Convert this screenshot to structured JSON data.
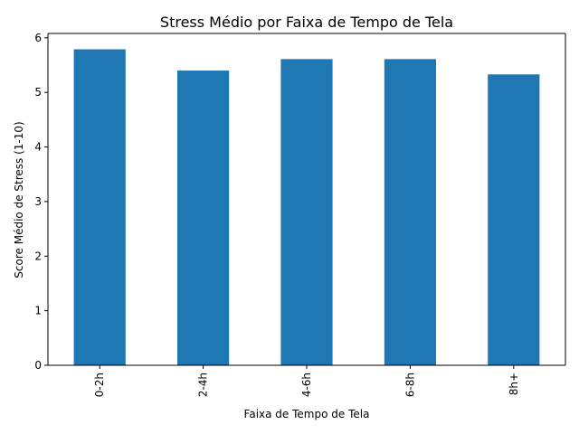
{
  "chart_data": {
    "type": "bar",
    "title": "Stress Médio por Faixa de Tempo de Tela",
    "xlabel": "Faixa de Tempo de Tela",
    "ylabel": "Score Médio de Stress (1-10)",
    "categories": [
      "0-2h",
      "2-4h",
      "4-6h",
      "6-8h",
      "8h+"
    ],
    "values": [
      5.79,
      5.4,
      5.61,
      5.61,
      5.33
    ],
    "ylim": [
      0,
      6.08
    ],
    "yticks": [
      0,
      1,
      2,
      3,
      4,
      5,
      6
    ],
    "bar_color": "#1f77b4",
    "grid": false,
    "legend": "none"
  }
}
